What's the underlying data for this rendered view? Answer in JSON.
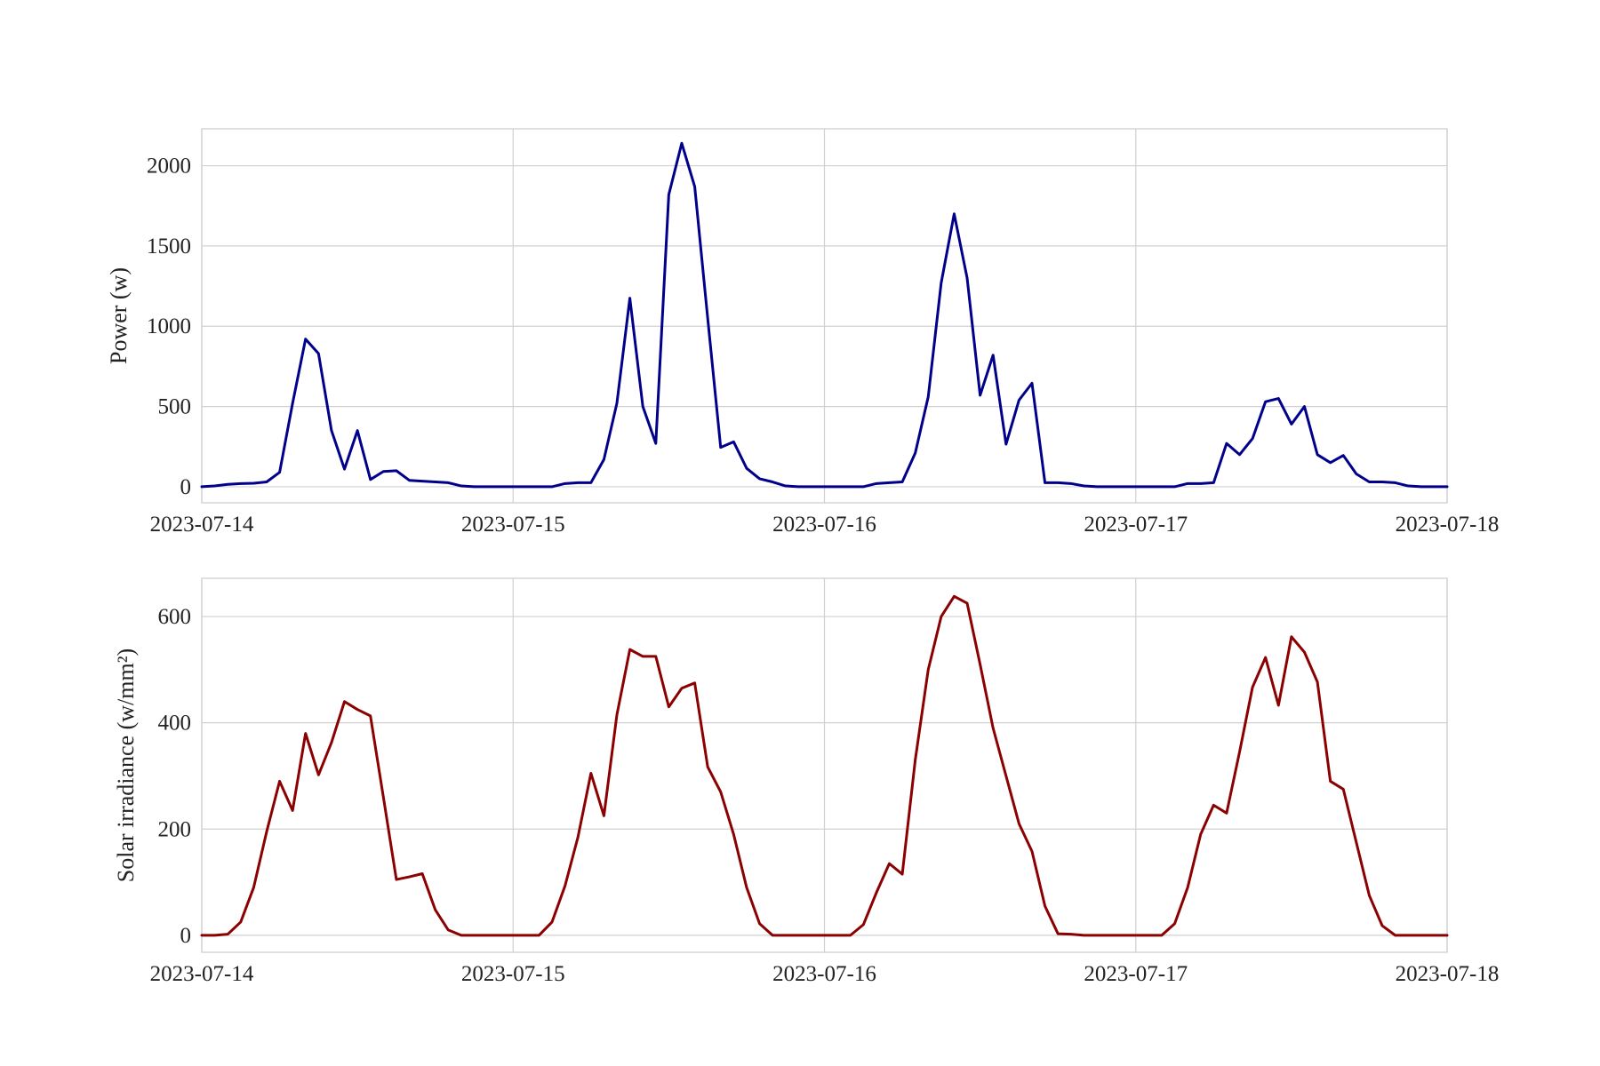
{
  "chart_data": [
    {
      "type": "line",
      "ylabel": "Power (w)",
      "xlabel": "",
      "x_start": "2023-07-14",
      "x_end": "2023-07-18",
      "xticks": [
        "2023-07-14",
        "2023-07-15",
        "2023-07-16",
        "2023-07-17",
        "2023-07-18"
      ],
      "yticks": [
        "0",
        "500",
        "1000",
        "1500",
        "2000"
      ],
      "ylim": [
        -100,
        2230
      ],
      "grid": true,
      "color": "#00008b",
      "series": [
        {
          "x": [
            "2023-07-14 00:00",
            "2023-07-14 01:00",
            "2023-07-14 02:00",
            "2023-07-14 03:00",
            "2023-07-14 04:00",
            "2023-07-14 05:00",
            "2023-07-14 06:00",
            "2023-07-14 07:00",
            "2023-07-14 08:00",
            "2023-07-14 09:00",
            "2023-07-14 10:00",
            "2023-07-14 11:00",
            "2023-07-14 12:00",
            "2023-07-14 13:00",
            "2023-07-14 14:00",
            "2023-07-14 15:00",
            "2023-07-14 16:00",
            "2023-07-14 17:00",
            "2023-07-14 18:00",
            "2023-07-14 19:00",
            "2023-07-14 20:00",
            "2023-07-14 21:00",
            "2023-07-14 22:00",
            "2023-07-14 23:00",
            "2023-07-15 00:00",
            "2023-07-15 01:00",
            "2023-07-15 02:00",
            "2023-07-15 03:00",
            "2023-07-15 04:00",
            "2023-07-15 05:00",
            "2023-07-15 06:00",
            "2023-07-15 07:00",
            "2023-07-15 08:00",
            "2023-07-15 09:00",
            "2023-07-15 10:00",
            "2023-07-15 11:00",
            "2023-07-15 12:00",
            "2023-07-15 13:00",
            "2023-07-15 14:00",
            "2023-07-15 15:00",
            "2023-07-15 16:00",
            "2023-07-15 17:00",
            "2023-07-15 18:00",
            "2023-07-15 19:00",
            "2023-07-15 20:00",
            "2023-07-15 21:00",
            "2023-07-15 22:00",
            "2023-07-15 23:00",
            "2023-07-16 00:00",
            "2023-07-16 01:00",
            "2023-07-16 02:00",
            "2023-07-16 03:00",
            "2023-07-16 04:00",
            "2023-07-16 05:00",
            "2023-07-16 06:00",
            "2023-07-16 07:00",
            "2023-07-16 08:00",
            "2023-07-16 09:00",
            "2023-07-16 10:00",
            "2023-07-16 11:00",
            "2023-07-16 12:00",
            "2023-07-16 13:00",
            "2023-07-16 14:00",
            "2023-07-16 15:00",
            "2023-07-16 16:00",
            "2023-07-16 17:00",
            "2023-07-16 18:00",
            "2023-07-16 19:00",
            "2023-07-16 20:00",
            "2023-07-16 21:00",
            "2023-07-16 22:00",
            "2023-07-16 23:00",
            "2023-07-17 00:00",
            "2023-07-17 01:00",
            "2023-07-17 02:00",
            "2023-07-17 03:00",
            "2023-07-17 04:00",
            "2023-07-17 05:00",
            "2023-07-17 06:00",
            "2023-07-17 07:00",
            "2023-07-17 08:00",
            "2023-07-17 09:00",
            "2023-07-17 10:00",
            "2023-07-17 11:00",
            "2023-07-17 12:00",
            "2023-07-17 13:00",
            "2023-07-17 14:00",
            "2023-07-17 15:00",
            "2023-07-17 16:00",
            "2023-07-17 17:00",
            "2023-07-17 18:00",
            "2023-07-17 19:00",
            "2023-07-17 20:00",
            "2023-07-17 21:00",
            "2023-07-17 22:00",
            "2023-07-17 23:00",
            "2023-07-18 00:00"
          ],
          "values": [
            0,
            5,
            15,
            20,
            22,
            30,
            90,
            520,
            920,
            830,
            350,
            110,
            350,
            45,
            95,
            100,
            40,
            35,
            30,
            25,
            5,
            0,
            0,
            0,
            0,
            0,
            0,
            0,
            20,
            25,
            25,
            170,
            520,
            1175,
            500,
            270,
            1820,
            2140,
            1870,
            1050,
            245,
            280,
            115,
            50,
            30,
            5,
            0,
            0,
            0,
            0,
            0,
            0,
            20,
            25,
            30,
            210,
            560,
            1270,
            1700,
            1300,
            570,
            820,
            265,
            540,
            645,
            25,
            25,
            20,
            5,
            0,
            0,
            0,
            0,
            0,
            0,
            0,
            20,
            20,
            25,
            270,
            200,
            300,
            530,
            550,
            390,
            500,
            200,
            150,
            195,
            80,
            30,
            30,
            25,
            5,
            0,
            0,
            0
          ]
        }
      ]
    },
    {
      "type": "line",
      "ylabel": "Solar irradiance (w/mm²)",
      "xlabel": "",
      "x_start": "2023-07-14",
      "x_end": "2023-07-18",
      "xticks": [
        "2023-07-14",
        "2023-07-15",
        "2023-07-16",
        "2023-07-17",
        "2023-07-18"
      ],
      "yticks": [
        "0",
        "200",
        "400",
        "600"
      ],
      "ylim": [
        -32,
        672
      ],
      "grid": true,
      "color": "#8b0000",
      "series": [
        {
          "x": [
            "2023-07-14 00:00",
            "2023-07-14 01:00",
            "2023-07-14 02:00",
            "2023-07-14 03:00",
            "2023-07-14 04:00",
            "2023-07-14 05:00",
            "2023-07-14 06:00",
            "2023-07-14 07:00",
            "2023-07-14 08:00",
            "2023-07-14 09:00",
            "2023-07-14 10:00",
            "2023-07-14 11:00",
            "2023-07-14 12:00",
            "2023-07-14 13:00",
            "2023-07-14 14:00",
            "2023-07-14 15:00",
            "2023-07-14 16:00",
            "2023-07-14 17:00",
            "2023-07-14 18:00",
            "2023-07-14 19:00",
            "2023-07-14 20:00",
            "2023-07-14 21:00",
            "2023-07-14 22:00",
            "2023-07-14 23:00",
            "2023-07-15 00:00",
            "2023-07-15 01:00",
            "2023-07-15 02:00",
            "2023-07-15 03:00",
            "2023-07-15 04:00",
            "2023-07-15 05:00",
            "2023-07-15 06:00",
            "2023-07-15 07:00",
            "2023-07-15 08:00",
            "2023-07-15 09:00",
            "2023-07-15 10:00",
            "2023-07-15 11:00",
            "2023-07-15 12:00",
            "2023-07-15 13:00",
            "2023-07-15 14:00",
            "2023-07-15 15:00",
            "2023-07-15 16:00",
            "2023-07-15 17:00",
            "2023-07-15 18:00",
            "2023-07-15 19:00",
            "2023-07-15 20:00",
            "2023-07-15 21:00",
            "2023-07-15 22:00",
            "2023-07-15 23:00",
            "2023-07-16 00:00",
            "2023-07-16 01:00",
            "2023-07-16 02:00",
            "2023-07-16 03:00",
            "2023-07-16 04:00",
            "2023-07-16 05:00",
            "2023-07-16 06:00",
            "2023-07-16 07:00",
            "2023-07-16 08:00",
            "2023-07-16 09:00",
            "2023-07-16 10:00",
            "2023-07-16 11:00",
            "2023-07-16 12:00",
            "2023-07-16 13:00",
            "2023-07-16 14:00",
            "2023-07-16 15:00",
            "2023-07-16 16:00",
            "2023-07-16 17:00",
            "2023-07-16 18:00",
            "2023-07-16 19:00",
            "2023-07-16 20:00",
            "2023-07-16 21:00",
            "2023-07-16 22:00",
            "2023-07-16 23:00",
            "2023-07-17 00:00",
            "2023-07-17 01:00",
            "2023-07-17 02:00",
            "2023-07-17 03:00",
            "2023-07-17 04:00",
            "2023-07-17 05:00",
            "2023-07-17 06:00",
            "2023-07-17 07:00",
            "2023-07-17 08:00",
            "2023-07-17 09:00",
            "2023-07-17 10:00",
            "2023-07-17 11:00",
            "2023-07-17 12:00",
            "2023-07-17 13:00",
            "2023-07-17 14:00",
            "2023-07-17 15:00",
            "2023-07-17 16:00",
            "2023-07-17 17:00",
            "2023-07-17 18:00",
            "2023-07-17 19:00",
            "2023-07-17 20:00",
            "2023-07-17 21:00",
            "2023-07-17 22:00",
            "2023-07-17 23:00",
            "2023-07-18 00:00"
          ],
          "values": [
            0,
            0,
            2,
            25,
            90,
            195,
            290,
            235,
            380,
            302,
            363,
            440,
            425,
            413,
            260,
            105,
            110,
            116,
            48,
            10,
            0,
            0,
            0,
            0,
            0,
            0,
            0,
            25,
            93,
            185,
            305,
            225,
            415,
            538,
            525,
            525,
            430,
            465,
            475,
            317,
            270,
            190,
            90,
            22,
            0,
            0,
            0,
            0,
            0,
            0,
            0,
            20,
            80,
            135,
            115,
            330,
            500,
            600,
            638,
            625,
            510,
            390,
            300,
            210,
            158,
            55,
            3,
            2,
            0,
            0,
            0,
            0,
            0,
            0,
            0,
            22,
            90,
            190,
            245,
            230,
            345,
            467,
            523,
            433,
            562,
            533,
            477,
            290,
            275,
            175,
            75,
            18,
            0,
            0,
            0,
            0,
            0
          ]
        }
      ]
    }
  ]
}
